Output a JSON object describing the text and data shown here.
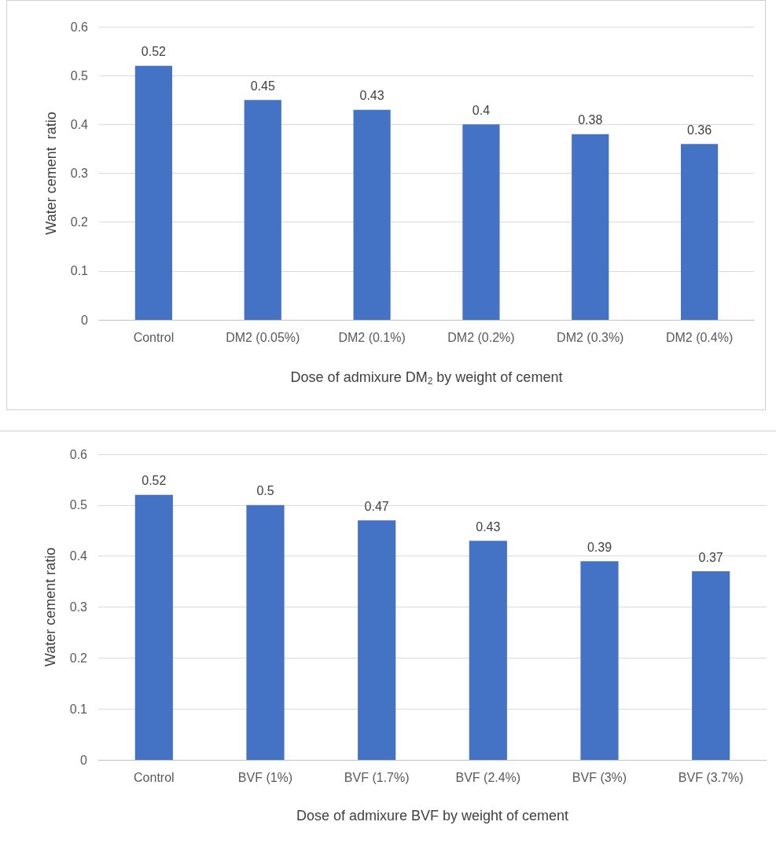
{
  "chart_data": [
    {
      "type": "bar",
      "categories": [
        "Control",
        "DM2 (0.05%)",
        "DM2 (0.1%)",
        "DM2 (0.2%)",
        "DM2 (0.3%)",
        "DM2 (0.4%)"
      ],
      "values": [
        0.52,
        0.45,
        0.43,
        0.4,
        0.38,
        0.36
      ],
      "color": "#4472c4",
      "ylim": [
        0,
        0.6
      ],
      "yticks": [
        0,
        0.1,
        0.2,
        0.3,
        0.4,
        0.5,
        0.6
      ],
      "grid": "y",
      "data_labels": true,
      "xlabel": "Dose of admixure DM$_{2}$ by weight of cement",
      "ylabel": "Water cement  ratio"
    },
    {
      "type": "bar",
      "categories": [
        "Control",
        "BVF (1%)",
        "BVF (1.7%)",
        "BVF (2.4%)",
        "BVF (3%)",
        "BVF (3.7%)"
      ],
      "values": [
        0.52,
        0.5,
        0.47,
        0.43,
        0.39,
        0.37
      ],
      "color": "#4472c4",
      "ylim": [
        0,
        0.6
      ],
      "yticks": [
        0,
        0.1,
        0.2,
        0.3,
        0.4,
        0.5,
        0.6
      ],
      "grid": "y",
      "data_labels": true,
      "xlabel": "Dose of admixure BVF by weight of cement",
      "ylabel": "Water cement ratio"
    }
  ]
}
